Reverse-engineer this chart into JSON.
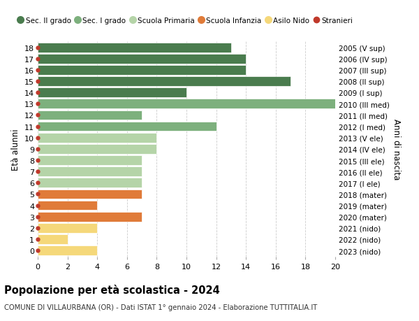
{
  "ages": [
    18,
    17,
    16,
    15,
    14,
    13,
    12,
    11,
    10,
    9,
    8,
    7,
    6,
    5,
    4,
    3,
    2,
    1,
    0
  ],
  "right_labels": [
    "2005 (V sup)",
    "2006 (IV sup)",
    "2007 (III sup)",
    "2008 (II sup)",
    "2009 (I sup)",
    "2010 (III med)",
    "2011 (II med)",
    "2012 (I med)",
    "2013 (V ele)",
    "2014 (IV ele)",
    "2015 (III ele)",
    "2016 (II ele)",
    "2017 (I ele)",
    "2018 (mater)",
    "2019 (mater)",
    "2020 (mater)",
    "2021 (nido)",
    "2022 (nido)",
    "2023 (nido)"
  ],
  "bar_values": [
    13,
    14,
    14,
    17,
    10,
    20,
    7,
    12,
    8,
    8,
    7,
    7,
    7,
    7,
    4,
    7,
    4,
    2,
    4
  ],
  "bar_colors": [
    "#4a7c4e",
    "#4a7c4e",
    "#4a7c4e",
    "#4a7c4e",
    "#4a7c4e",
    "#7db07d",
    "#7db07d",
    "#7db07d",
    "#b5d4a8",
    "#b5d4a8",
    "#b5d4a8",
    "#b5d4a8",
    "#b5d4a8",
    "#e07b39",
    "#e07b39",
    "#e07b39",
    "#f5d87a",
    "#f5d87a",
    "#f5d87a"
  ],
  "stranieri_color": "#c0392b",
  "legend_labels": [
    "Sec. II grado",
    "Sec. I grado",
    "Scuola Primaria",
    "Scuola Infanzia",
    "Asilo Nido",
    "Stranieri"
  ],
  "legend_colors": [
    "#4a7c4e",
    "#7db07d",
    "#b5d4a8",
    "#e07b39",
    "#f5d87a",
    "#c0392b"
  ],
  "title": "Popolazione per età scolastica - 2024",
  "subtitle": "COMUNE DI VILLAURBANA (OR) - Dati ISTAT 1° gennaio 2024 - Elaborazione TUTTITALIA.IT",
  "ylabel": "Età alunni",
  "right_ylabel": "Anni di nascita",
  "xlim": [
    0,
    20
  ],
  "xticks": [
    0,
    2,
    4,
    6,
    8,
    10,
    12,
    14,
    16,
    18,
    20
  ],
  "grid_color": "#cccccc",
  "bg_color": "#ffffff",
  "bar_height": 0.85
}
